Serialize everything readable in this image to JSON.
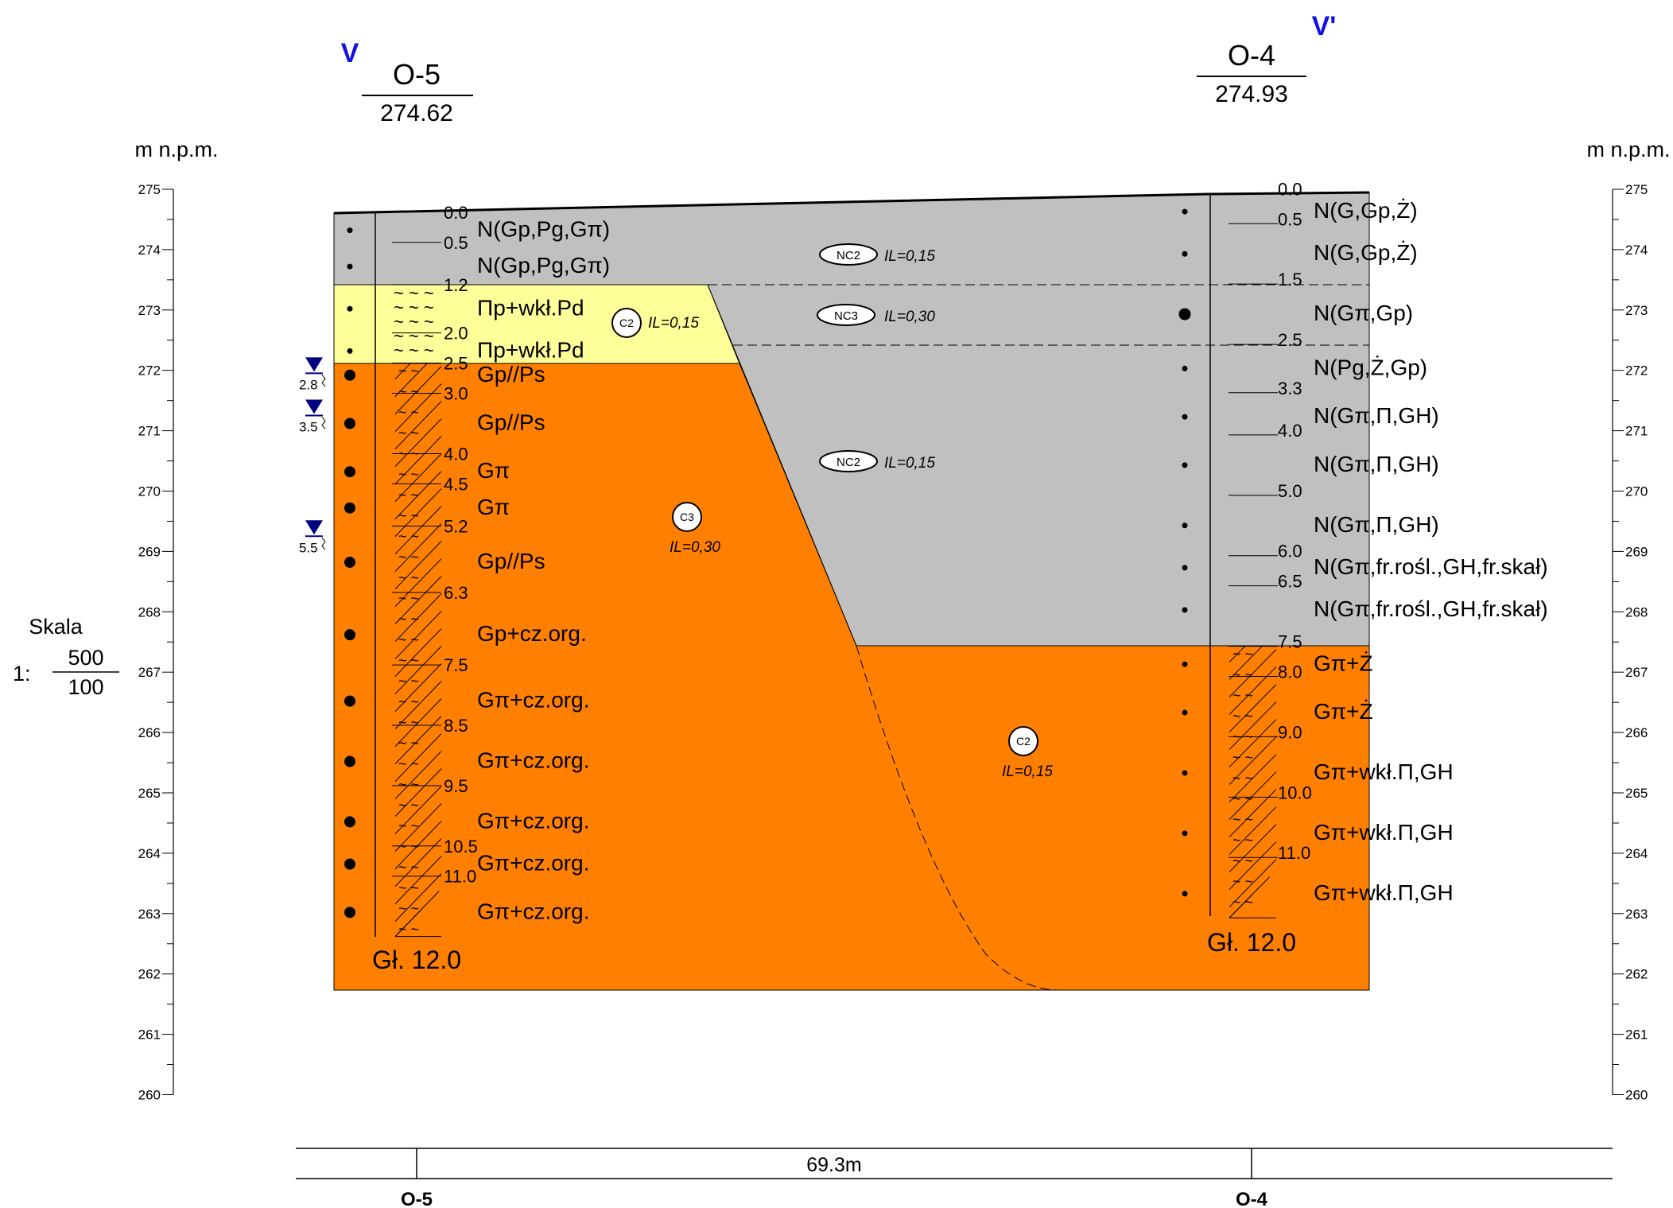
{
  "section": {
    "start_label": "V",
    "end_label": "V'",
    "distance": "69.3m"
  },
  "boreholes": [
    {
      "id": "O-5",
      "elevation": "274.62",
      "depth": "Gł. 12.0",
      "layers": [
        {
          "top": 0.0,
          "bottom": 1.2,
          "soil": "nasyp"
        },
        {
          "top": 1.2,
          "bottom": 2.5,
          "soil": "pyl"
        },
        {
          "top": 2.5,
          "bottom": 12.0,
          "soil": "glina"
        }
      ],
      "depth_ticks": [
        "0.0",
        "0.5",
        "1.2",
        "2.0",
        "2.5",
        "3.0",
        "4.0",
        "4.5",
        "5.2",
        "6.3",
        "7.5",
        "8.5",
        "9.5",
        "10.5",
        "11.0"
      ],
      "descriptions": [
        "N(Gp,Pg,Gπ)",
        "N(Gp,Pg,Gπ)",
        "Πp+wkł.Pd",
        "Πp+wkł.Pd",
        "Gp//Ps",
        "Gp//Ps",
        "Gπ",
        "Gπ",
        "Gp//Ps",
        "Gp+cz.org.",
        "Gπ+cz.org.",
        "Gπ+cz.org.",
        "Gπ+cz.org.",
        "Gπ+cz.org.",
        "Gπ+cz.org."
      ],
      "samples": [
        0.3,
        0.9,
        1.6,
        2.3,
        2.7,
        3.5,
        4.3,
        4.9,
        5.8,
        7.0,
        8.1,
        9.1,
        10.1,
        10.8,
        11.6
      ],
      "water": [
        {
          "depth": 2.8,
          "label": "2.8"
        },
        {
          "depth": 3.5,
          "label": "3.5"
        },
        {
          "depth": 5.5,
          "label": "5.5"
        }
      ]
    },
    {
      "id": "O-4",
      "elevation": "274.93",
      "depth": "Gł. 12.0",
      "layers": [
        {
          "top": 0.0,
          "bottom": 7.5,
          "soil": "nasyp"
        },
        {
          "top": 7.5,
          "bottom": 12.0,
          "soil": "glina"
        }
      ],
      "depth_ticks": [
        "0.0",
        "0.5",
        "1.5",
        "2.5",
        "3.3",
        "4.0",
        "5.0",
        "6.0",
        "6.5",
        "7.5",
        "8.0",
        "9.0",
        "10.0",
        "11.0"
      ],
      "descriptions": [
        "N(G,Gp,Ż)",
        "N(G,Gp,Ż)",
        "N(Gπ,Gp)",
        "N(Pg,Ż,Gp)",
        "N(Gπ,Π,GH)",
        "N(Gπ,Π,GH)",
        "N(Gπ,Π,GH)",
        "N(Gπ,fr.rośl.,GH,fr.skał)",
        "N(Gπ,fr.rośl.,GH,fr.skał)",
        "Gπ+Ż",
        "Gπ+Ż",
        "Gπ+wkł.Π,GH",
        "Gπ+wkł.Π,GH",
        "Gπ+wkł.Π,GH"
      ],
      "samples": [
        0.3,
        1.0,
        2.0,
        2.9,
        3.7,
        4.5,
        5.5,
        6.2,
        6.9,
        7.8,
        8.6,
        9.6,
        10.6,
        11.6
      ]
    }
  ],
  "units": [
    {
      "code": "NC2",
      "il": "IL=0,15"
    },
    {
      "code": "NC3",
      "il": "IL=0,30"
    },
    {
      "code": "NC2",
      "il": "IL=0,15"
    },
    {
      "code": "C2",
      "il": "IL=0,15"
    },
    {
      "code": "C3",
      "il": "IL=0,30"
    },
    {
      "code": "C2",
      "il": "IL=0,15"
    }
  ],
  "axis": {
    "label": "m n.p.m.",
    "min": 260,
    "max": 275,
    "ticks": [
      "275",
      "274",
      "273",
      "272",
      "271",
      "270",
      "269",
      "268",
      "267",
      "266",
      "265",
      "264",
      "263",
      "262",
      "261",
      "260"
    ]
  },
  "scale": {
    "label": "Skala",
    "prefix": "1:",
    "horizontal": "500",
    "vertical": "100"
  },
  "colors": {
    "nasyp": "#c0c0c0",
    "pyl": "#ffff99",
    "glina": "#ff8000",
    "water": "#000080",
    "labels": "#1010e0"
  }
}
